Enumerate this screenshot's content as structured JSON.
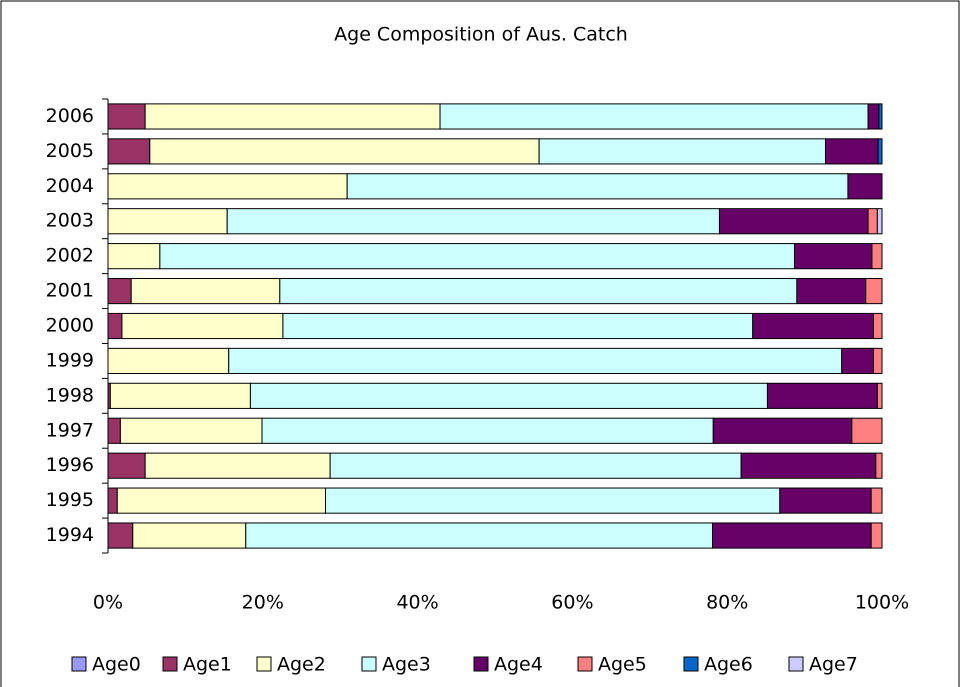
{
  "chart_data": {
    "type": "stacked-bar-horizontal",
    "title": "Age Composition of Aus. Catch",
    "categories": [
      "2006",
      "2005",
      "2004",
      "2003",
      "2002",
      "2001",
      "2000",
      "1999",
      "1998",
      "1997",
      "1996",
      "1995",
      "1994"
    ],
    "series": [
      {
        "name": "Age0",
        "color": "#9999ff",
        "values": [
          0,
          0,
          0,
          0,
          0,
          0,
          0,
          0,
          0,
          0,
          0,
          0,
          0
        ]
      },
      {
        "name": "Age1",
        "color": "#993366",
        "values": [
          4.8,
          5.4,
          0,
          0,
          0,
          3.0,
          1.8,
          0,
          0.3,
          1.6,
          4.8,
          1.2,
          3.2
        ]
      },
      {
        "name": "Age2",
        "color": "#ffffcc",
        "values": [
          38.1,
          50.3,
          30.9,
          15.4,
          6.7,
          19.2,
          20.8,
          15.6,
          18.1,
          18.3,
          23.9,
          26.9,
          14.6
        ]
      },
      {
        "name": "Age3",
        "color": "#ccffff",
        "values": [
          55.3,
          37.0,
          64.7,
          63.6,
          82.0,
          66.8,
          60.7,
          79.2,
          66.8,
          58.3,
          53.1,
          58.7,
          60.3
        ]
      },
      {
        "name": "Age4",
        "color": "#660066",
        "values": [
          1.4,
          6.8,
          4.4,
          19.2,
          10.0,
          8.9,
          15.6,
          4.1,
          14.2,
          17.9,
          17.4,
          11.8,
          20.5
        ]
      },
      {
        "name": "Age5",
        "color": "#ff8080",
        "values": [
          0,
          0,
          0,
          1.2,
          1.3,
          2.1,
          1.1,
          1.1,
          0.6,
          3.9,
          0.8,
          1.4,
          1.4
        ]
      },
      {
        "name": "Age6",
        "color": "#0066cc",
        "values": [
          0.4,
          0.5,
          0,
          0,
          0,
          0,
          0,
          0,
          0,
          0,
          0,
          0,
          0
        ]
      },
      {
        "name": "Age7",
        "color": "#ccccff",
        "values": [
          0,
          0,
          0,
          0.6,
          0,
          0,
          0,
          0,
          0,
          0,
          0,
          0,
          0
        ]
      }
    ],
    "xlim": [
      0,
      100
    ],
    "xticks": [
      {
        "value": 0,
        "label": "0%"
      },
      {
        "value": 20,
        "label": "20%"
      },
      {
        "value": 40,
        "label": "40%"
      },
      {
        "value": 60,
        "label": "60%"
      },
      {
        "value": 80,
        "label": "80%"
      },
      {
        "value": 100,
        "label": "100%"
      }
    ],
    "legend": "bottom"
  }
}
